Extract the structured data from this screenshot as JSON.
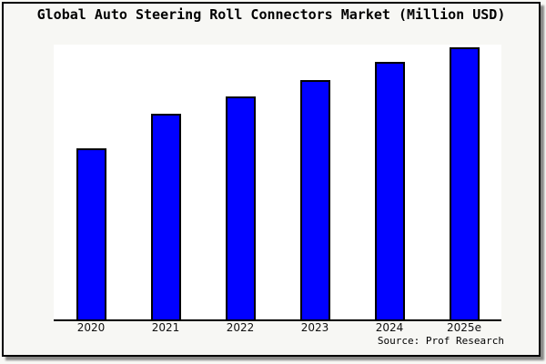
{
  "frame": {
    "background": "#f7f7f4",
    "border_color": "#000000"
  },
  "chart_data": {
    "type": "bar",
    "title": "Global Auto Steering Roll Connectors Market (Million USD)",
    "categories": [
      "2020",
      "2021",
      "2022",
      "2023",
      "2024",
      "2025e"
    ],
    "values": [
      63,
      75.5,
      82,
      88,
      94.5,
      100
    ],
    "values_note": "No y-axis scale shown in chart; values estimated relative to 2025e = 100",
    "xlabel": "",
    "ylabel": "",
    "ylim": [
      0,
      101
    ],
    "grid": false,
    "legend": false,
    "bar_color": "#0101ff",
    "bar_edge_color": "#000000"
  },
  "source_note": "Source: Prof Research"
}
